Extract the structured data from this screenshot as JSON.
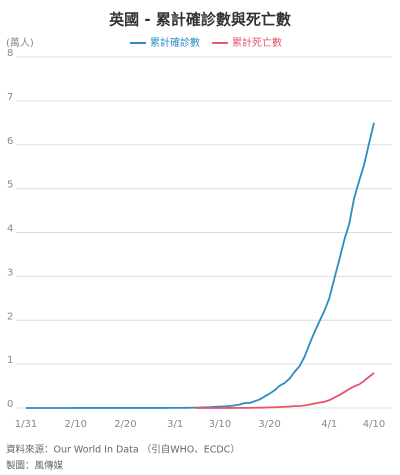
{
  "chart_data": {
    "type": "line",
    "title": "英國 - 累計確診數與死亡數",
    "y_label": "(萬人)",
    "categories": [
      "1/31",
      null,
      null,
      null,
      null,
      null,
      null,
      null,
      null,
      null,
      "2/10",
      null,
      null,
      null,
      null,
      null,
      null,
      null,
      null,
      null,
      "2/20",
      null,
      null,
      null,
      null,
      null,
      null,
      null,
      null,
      null,
      "3/1",
      null,
      null,
      null,
      null,
      null,
      null,
      null,
      null,
      "3/10",
      null,
      null,
      null,
      null,
      null,
      null,
      null,
      null,
      null,
      "3/20",
      null,
      null,
      null,
      null,
      null,
      null,
      null,
      null,
      null,
      null,
      null,
      "4/1",
      null,
      null,
      null,
      null,
      null,
      null,
      null,
      null,
      "4/10"
    ],
    "series": [
      {
        "name": "累計確診數",
        "color": "#2b8cc4",
        "values": [
          0.0002,
          0.0002,
          0.0002,
          0.0002,
          0.0002,
          0.0002,
          0.0003,
          0.0003,
          0.0003,
          0.0003,
          0.0008,
          0.0008,
          0.0009,
          0.0009,
          0.0009,
          0.0009,
          0.0009,
          0.0009,
          0.0009,
          0.0009,
          0.0009,
          0.0009,
          0.0009,
          0.0009,
          0.0009,
          0.0013,
          0.0013,
          0.0015,
          0.0019,
          0.002,
          0.0023,
          0.0036,
          0.004,
          0.0051,
          0.0085,
          0.0115,
          0.0163,
          0.0206,
          0.0273,
          0.0321,
          0.0373,
          0.0456,
          0.059,
          0.08,
          0.114,
          0.114,
          0.154,
          0.195,
          0.263,
          0.327,
          0.401,
          0.507,
          0.568,
          0.668,
          0.82,
          0.95,
          1.16,
          1.45,
          1.72,
          1.97,
          2.21,
          2.5,
          2.94,
          3.37,
          3.82,
          4.19,
          4.78,
          5.17,
          5.54,
          6.03,
          6.5
        ]
      },
      {
        "name": "累計死亡數",
        "color": "#e8546a",
        "values": [
          null,
          null,
          null,
          null,
          null,
          null,
          null,
          null,
          null,
          null,
          null,
          null,
          null,
          null,
          null,
          null,
          null,
          null,
          null,
          null,
          null,
          null,
          null,
          null,
          null,
          null,
          null,
          null,
          null,
          null,
          null,
          null,
          null,
          null,
          0.0001,
          0.0001,
          0.0002,
          0.0002,
          0.0003,
          0.0006,
          0.0006,
          0.0008,
          0.001,
          0.0021,
          0.0021,
          0.0035,
          0.0055,
          0.0071,
          0.0104,
          0.0144,
          0.0177,
          0.0233,
          0.0281,
          0.0335,
          0.0422,
          0.0463,
          0.0578,
          0.0759,
          0.1019,
          0.1228,
          0.1408,
          0.1789,
          0.2352,
          0.2921,
          0.3605,
          0.4313,
          0.4932,
          0.5373,
          0.6159,
          0.7097,
          0.7978
        ]
      }
    ],
    "ylim": [
      0,
      8
    ],
    "yticks": [
      0,
      1,
      2,
      3,
      4,
      5,
      6,
      7,
      8
    ],
    "grid": true,
    "source": "資料來源：Our World In Data （引自WHO、ECDC）",
    "credit": "製圖：風傳媒"
  }
}
